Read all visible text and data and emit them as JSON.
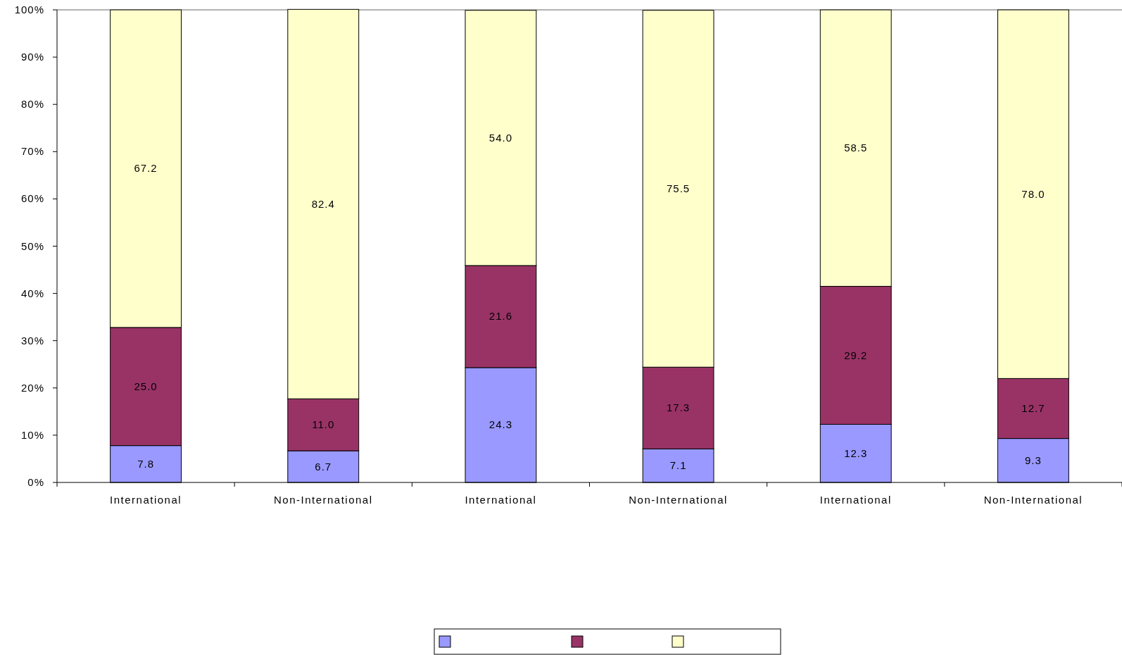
{
  "chart_data": {
    "type": "bar",
    "stacked": true,
    "categories": [
      "International",
      "Non-International",
      "International",
      "Non-International",
      "International",
      "Non-International"
    ],
    "series": [
      {
        "color": "#9999ff",
        "values": [
          7.8,
          6.7,
          24.3,
          7.1,
          12.3,
          9.3
        ],
        "value_labels": [
          "7.8",
          "6.7",
          "24.3",
          "7.1",
          "12.3",
          "9.3"
        ]
      },
      {
        "color": "#993366",
        "values": [
          25.0,
          11.0,
          21.6,
          17.3,
          29.2,
          12.7
        ],
        "value_labels": [
          "25.0",
          "11.0",
          "21.6",
          "17.3",
          "29.2",
          "12.7"
        ]
      },
      {
        "color": "#ffffcc",
        "values": [
          67.2,
          82.4,
          54.0,
          75.5,
          58.5,
          78.0
        ],
        "value_labels": [
          "67.2",
          "82.4",
          "54.0",
          "75.5",
          "58.5",
          "78.0"
        ]
      }
    ],
    "ylim": [
      0,
      100
    ],
    "yticks": [
      {
        "value": 0,
        "label": "0%"
      },
      {
        "value": 10,
        "label": "10%"
      },
      {
        "value": 20,
        "label": "20%"
      },
      {
        "value": 30,
        "label": "30%"
      },
      {
        "value": 40,
        "label": "40%"
      },
      {
        "value": 50,
        "label": "50%"
      },
      {
        "value": 60,
        "label": "60%"
      },
      {
        "value": 70,
        "label": "70%"
      },
      {
        "value": 80,
        "label": "80%"
      },
      {
        "value": 90,
        "label": "90%"
      },
      {
        "value": 100,
        "label": "100%"
      }
    ],
    "grid": false
  }
}
